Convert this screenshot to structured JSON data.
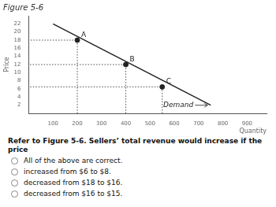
{
  "chart_data": {
    "type": "line",
    "title": "Figure 5-6",
    "x_label": "Quantity",
    "y_label": "Price",
    "series": [
      {
        "type": "line",
        "color": "#222222",
        "x": [
          100,
          750
        ],
        "values": [
          22,
          2
        ]
      },
      {
        "type": "scatter",
        "color": "#222222",
        "x": [
          200,
          400,
          550
        ],
        "values": [
          18,
          12,
          6.5
        ],
        "point_labels": [
          "A",
          "B",
          "C"
        ]
      }
    ],
    "annotations": [
      {
        "text": "Demand"
      }
    ],
    "xlim": [
      0,
      980
    ],
    "xticks": [
      100,
      200,
      300,
      400,
      500,
      600,
      700,
      800,
      900
    ],
    "ylim": [
      0,
      24
    ],
    "yticks": [
      2,
      4,
      6,
      8,
      10,
      12,
      14,
      16,
      18,
      20,
      22
    ],
    "grid": false
  },
  "question_text": "Refer to Figure 5-6. Sellers’ total revenue would increase if the price",
  "options": [
    "All of the above are correct.",
    "increased from $6 to $8.",
    "decreased from $18 to $16.",
    "decreased from $16 to $15."
  ]
}
